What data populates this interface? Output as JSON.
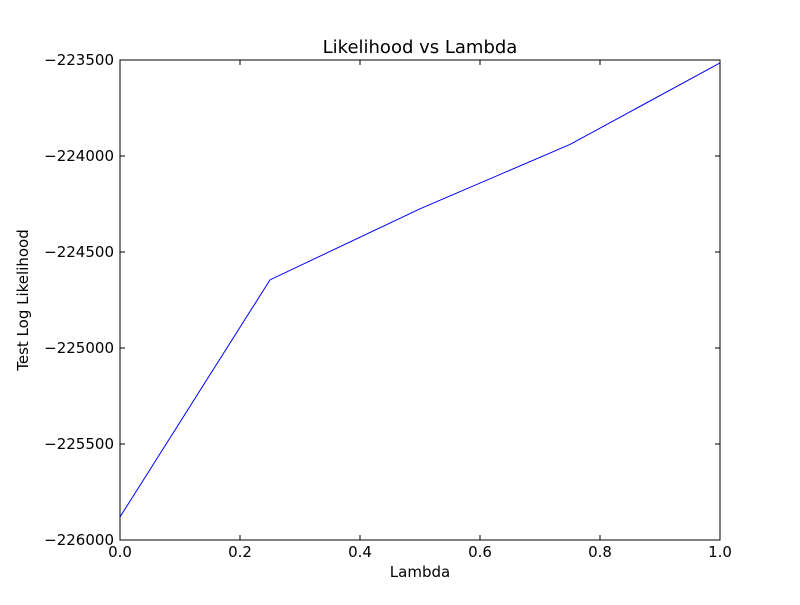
{
  "chart_data": {
    "type": "line",
    "title": "Likelihood vs Lambda",
    "xlabel": "Lambda",
    "ylabel": "Test Log Likelihood",
    "xlim": [
      0.0,
      1.0
    ],
    "ylim": [
      -226000,
      -223500
    ],
    "xticks": [
      0.0,
      0.2,
      0.4,
      0.6,
      0.8,
      1.0
    ],
    "xtick_labels": [
      "0.0",
      "0.2",
      "0.4",
      "0.6",
      "0.8",
      "1.0"
    ],
    "yticks": [
      -226000,
      -225500,
      -225000,
      -224500,
      -224000,
      -223500
    ],
    "ytick_labels": [
      "−226000",
      "−225500",
      "−225000",
      "−224500",
      "−224000",
      "−223500"
    ],
    "grid": false,
    "series": [
      {
        "color": "#0000ff",
        "x": [
          0.0,
          0.25,
          0.5,
          0.75,
          1.0
        ],
        "y": [
          -225880,
          -224645,
          -224275,
          -223940,
          -223515
        ]
      }
    ]
  }
}
